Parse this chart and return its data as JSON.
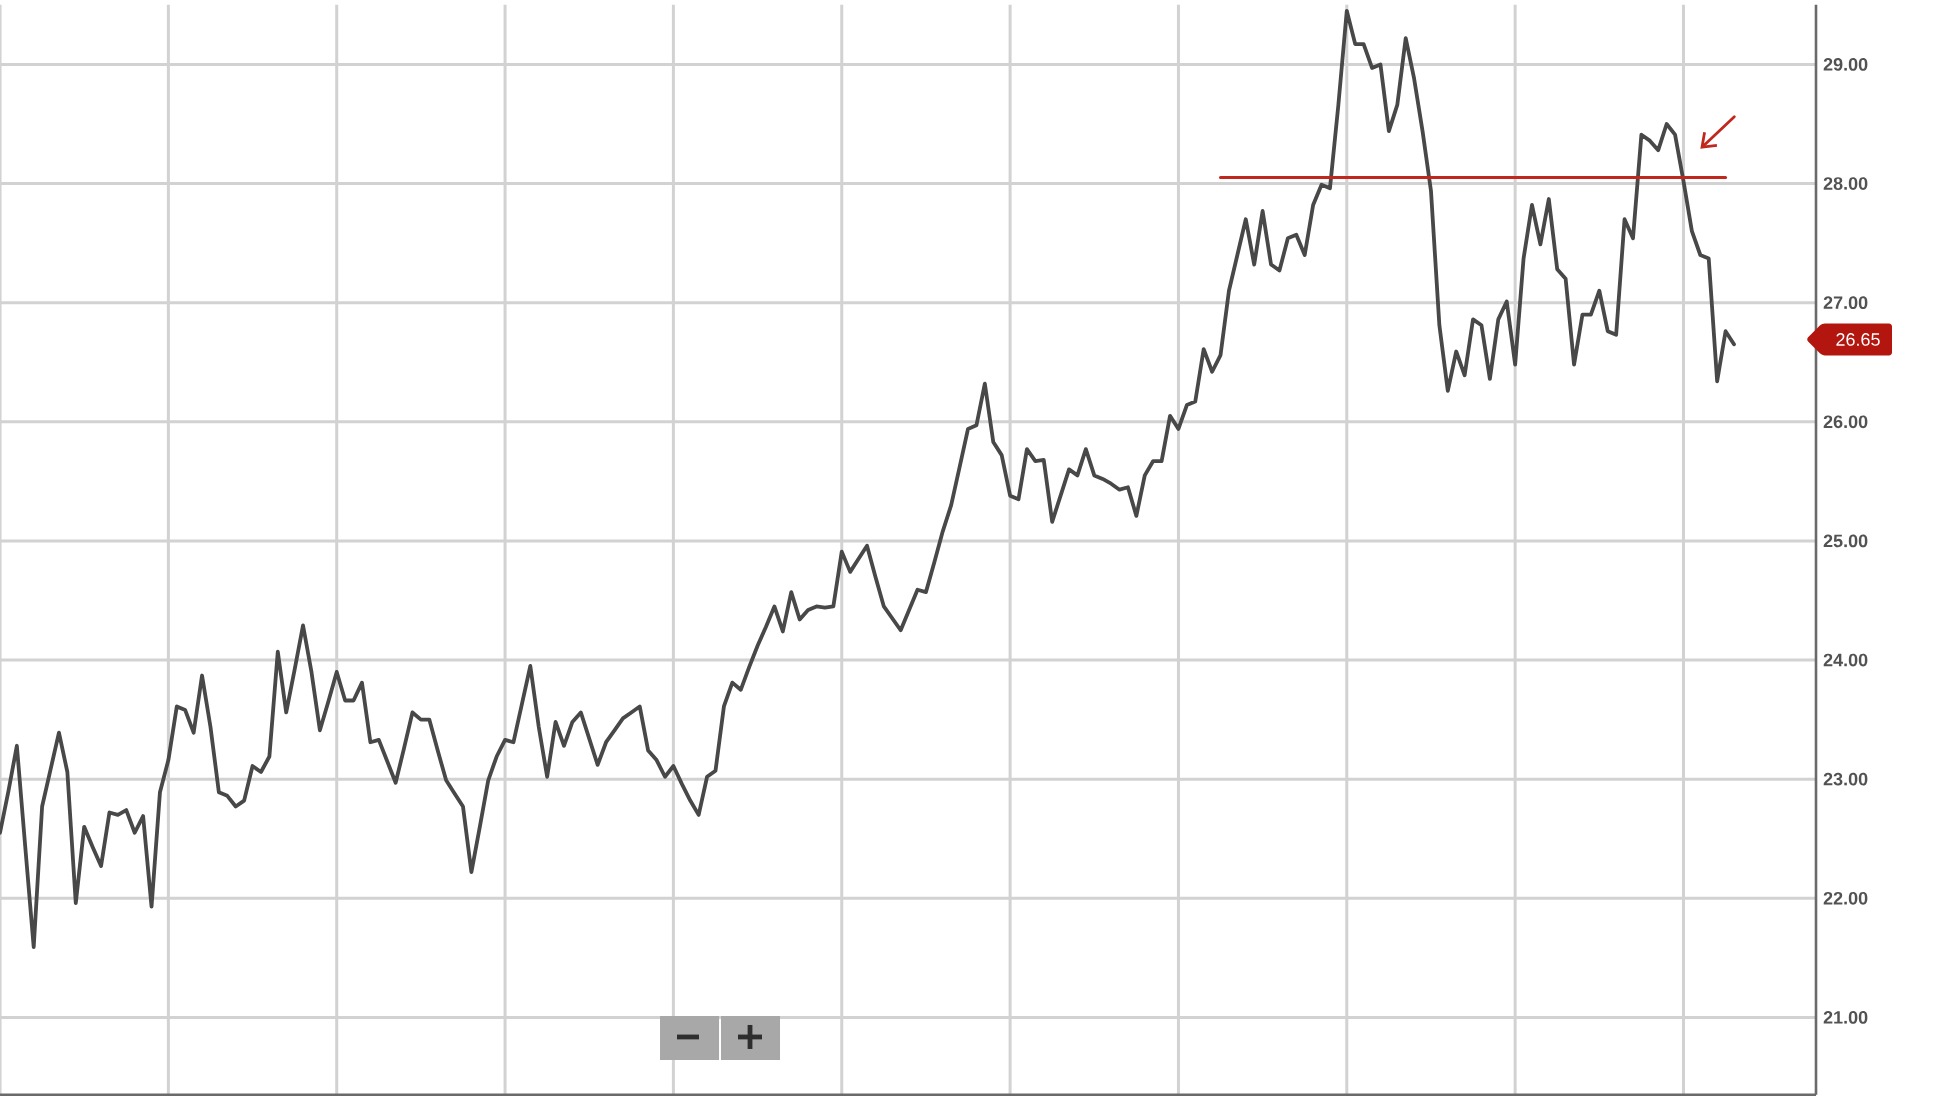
{
  "chart_data": {
    "type": "line",
    "categories": [
      null,
      null,
      null,
      null,
      null,
      null,
      null,
      null,
      null,
      null,
      null,
      null,
      null,
      null,
      null,
      null,
      null,
      null,
      null,
      null,
      null,
      null,
      null,
      null,
      null,
      null,
      null,
      null,
      null,
      null,
      null,
      null,
      null,
      null,
      null,
      null,
      null,
      null,
      null,
      null,
      null,
      null,
      null,
      null,
      null,
      null,
      null,
      null,
      null,
      null,
      null,
      null,
      null,
      null,
      null,
      null,
      null,
      null,
      null,
      null,
      null,
      null,
      null,
      null,
      null,
      null,
      null,
      null,
      null,
      null,
      null,
      null,
      null,
      null,
      null,
      null,
      null,
      null,
      null,
      null,
      null,
      null,
      null,
      null,
      null,
      null,
      null,
      null,
      null,
      null,
      null,
      null,
      null,
      null,
      null,
      null,
      null,
      null,
      null,
      null,
      null,
      null,
      null,
      null,
      null,
      null,
      null,
      null,
      null,
      null,
      null,
      null,
      null,
      null,
      null,
      null,
      null,
      null,
      null,
      null,
      null,
      null,
      null,
      null,
      null,
      null,
      null,
      null,
      null,
      null,
      null,
      null,
      null,
      null,
      null,
      null,
      null,
      null,
      null,
      null,
      null,
      null,
      null,
      null,
      null,
      null,
      null,
      null,
      null,
      null,
      null,
      null,
      null,
      null,
      null,
      null,
      null,
      null,
      null,
      null,
      null,
      null,
      null,
      null,
      null,
      null,
      null,
      null,
      null,
      null,
      null,
      null,
      null,
      null,
      null,
      null,
      null,
      null,
      null,
      null,
      null,
      null,
      null,
      null,
      null,
      null,
      null,
      null,
      null,
      null,
      null,
      null,
      null,
      null,
      null,
      null,
      null,
      null,
      null,
      null,
      null,
      null,
      null,
      null,
      null,
      null,
      null
    ],
    "series": [
      {
        "color": "#484848",
        "values": [
          22.55,
          22.9,
          23.28,
          22.43,
          21.59,
          22.77,
          23.08,
          23.39,
          23.06,
          21.96,
          22.6,
          22.43,
          22.27,
          22.72,
          22.7,
          22.74,
          22.55,
          22.69,
          21.93,
          22.89,
          23.16,
          23.61,
          23.58,
          23.39,
          23.87,
          23.44,
          22.89,
          22.86,
          22.77,
          22.82,
          23.11,
          23.06,
          23.19,
          24.07,
          23.56,
          23.92,
          24.29,
          23.9,
          23.41,
          23.65,
          23.9,
          23.66,
          23.66,
          23.81,
          23.31,
          23.33,
          23.15,
          22.97,
          23.26,
          23.56,
          23.5,
          23.5,
          23.24,
          22.99,
          22.88,
          22.77,
          22.22,
          22.6,
          22.99,
          23.19,
          23.33,
          23.31,
          23.63,
          23.95,
          23.44,
          23.02,
          23.48,
          23.28,
          23.48,
          23.56,
          23.34,
          23.12,
          23.31,
          23.41,
          23.51,
          23.56,
          23.61,
          23.24,
          23.16,
          23.02,
          23.11,
          22.96,
          22.82,
          22.7,
          23.02,
          23.07,
          23.61,
          23.81,
          23.75,
          23.94,
          24.12,
          24.28,
          24.45,
          24.24,
          24.57,
          24.34,
          24.42,
          24.45,
          24.44,
          24.45,
          24.91,
          24.74,
          24.85,
          24.96,
          24.7,
          24.45,
          24.35,
          24.25,
          24.42,
          24.59,
          24.57,
          24.82,
          25.08,
          25.3,
          25.62,
          25.94,
          25.97,
          26.32,
          25.83,
          25.72,
          25.38,
          25.35,
          25.77,
          25.67,
          25.68,
          25.16,
          25.38,
          25.6,
          25.55,
          25.77,
          25.55,
          25.52,
          25.48,
          25.43,
          25.45,
          25.21,
          25.55,
          25.67,
          25.67,
          26.05,
          25.94,
          26.14,
          26.17,
          26.61,
          26.42,
          26.56,
          27.1,
          27.4,
          27.7,
          27.32,
          27.77,
          27.32,
          27.27,
          27.54,
          27.57,
          27.4,
          27.82,
          27.99,
          27.96,
          28.66,
          29.45,
          29.17,
          29.17,
          28.97,
          29.0,
          28.44,
          28.66,
          29.22,
          28.88,
          28.44,
          27.94,
          26.81,
          26.26,
          26.59,
          26.39,
          26.86,
          26.81,
          26.36,
          26.86,
          27.01,
          26.48,
          27.37,
          27.82,
          27.49,
          27.87,
          27.28,
          27.2,
          26.48,
          26.9,
          26.9,
          27.1,
          26.76,
          26.73,
          27.7,
          27.54,
          28.41,
          28.36,
          28.28,
          28.5,
          28.41,
          28.02,
          27.6,
          27.4,
          27.37,
          26.34,
          26.76,
          26.65
        ]
      },
      {
        "color": "#c0281e",
        "values": [
          null,
          null,
          null,
          null,
          null,
          null,
          null,
          null,
          null,
          null,
          null,
          null,
          null,
          null,
          null,
          null,
          null,
          null,
          null,
          null,
          null,
          null,
          null,
          null,
          null,
          null,
          null,
          null,
          null,
          null,
          null,
          null,
          null,
          null,
          null,
          null,
          null,
          null,
          null,
          null,
          null,
          null,
          null,
          null,
          null,
          null,
          null,
          null,
          null,
          null,
          null,
          null,
          null,
          null,
          null,
          null,
          null,
          null,
          null,
          null,
          null,
          null,
          null,
          null,
          null,
          null,
          null,
          null,
          null,
          null,
          null,
          null,
          null,
          null,
          null,
          null,
          null,
          null,
          null,
          null,
          null,
          null,
          null,
          null,
          null,
          null,
          null,
          null,
          null,
          null,
          null,
          null,
          null,
          null,
          null,
          null,
          null,
          null,
          null,
          null,
          null,
          null,
          null,
          null,
          null,
          null,
          null,
          null,
          null,
          null,
          null,
          null,
          null,
          null,
          null,
          null,
          null,
          null,
          null,
          null,
          null,
          null,
          null,
          null,
          null,
          null,
          null,
          null,
          null,
          null,
          null,
          null,
          null,
          null,
          null,
          null,
          null,
          null,
          null,
          null,
          null,
          null,
          null,
          null,
          null,
          28.05,
          28.05,
          28.05,
          28.05,
          28.05,
          28.05,
          28.05,
          28.05,
          28.05,
          28.05,
          28.05,
          28.05,
          28.05,
          28.05,
          28.05,
          28.05,
          28.05,
          28.05,
          28.05,
          28.05,
          28.05,
          28.05,
          28.05,
          28.05,
          28.05,
          28.05,
          28.05,
          28.05,
          28.05,
          28.05,
          28.05,
          28.05,
          28.05,
          28.05,
          28.05,
          28.05,
          28.05,
          28.05,
          28.05,
          28.05,
          28.05,
          28.05,
          28.05,
          28.05,
          28.05,
          28.05,
          28.05,
          28.05,
          28.05,
          28.05,
          28.05,
          28.05,
          28.05,
          28.05,
          28.05,
          28.05,
          28.05,
          28.05,
          28.05,
          28.05,
          28.05,
          null
        ]
      }
    ],
    "ylim": [
      20.35,
      29.5
    ],
    "yticks": [
      {
        "value": 21,
        "label": "21.00"
      },
      {
        "value": 22,
        "label": "22.00"
      },
      {
        "value": 23,
        "label": "23.00"
      },
      {
        "value": 24,
        "label": "24.00"
      },
      {
        "value": 25,
        "label": "25.00"
      },
      {
        "value": 26,
        "label": "26.00"
      },
      {
        "value": 27,
        "label": "27.00"
      },
      {
        "value": 28,
        "label": "28.00"
      },
      {
        "value": 29,
        "label": "29.00"
      }
    ],
    "grid": true,
    "tick_labels": "y",
    "annotations": [
      "26.65"
    ]
  }
}
